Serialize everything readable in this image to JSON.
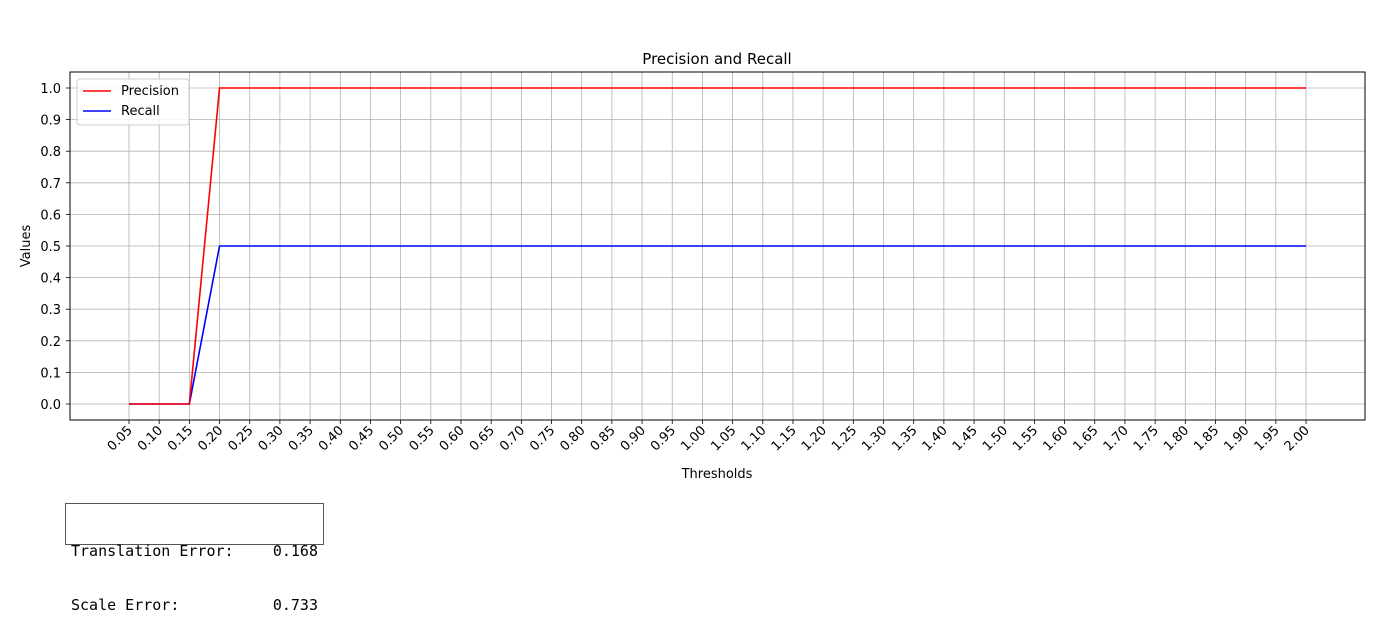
{
  "chart_data": {
    "type": "line",
    "title": "Precision and Recall",
    "xlabel": "Thresholds",
    "ylabel": "Values",
    "x": [
      "0.05",
      "0.10",
      "0.15",
      "0.20",
      "0.25",
      "0.30",
      "0.35",
      "0.40",
      "0.45",
      "0.50",
      "0.55",
      "0.60",
      "0.65",
      "0.70",
      "0.75",
      "0.80",
      "0.85",
      "0.90",
      "0.95",
      "1.00",
      "1.05",
      "1.10",
      "1.15",
      "1.20",
      "1.25",
      "1.30",
      "1.35",
      "1.40",
      "1.45",
      "1.50",
      "1.55",
      "1.60",
      "1.65",
      "1.70",
      "1.75",
      "1.80",
      "1.85",
      "1.90",
      "1.95",
      "2.00"
    ],
    "series": [
      {
        "name": "Precision",
        "color": "#ff0000",
        "values": [
          0,
          0,
          0,
          1,
          1,
          1,
          1,
          1,
          1,
          1,
          1,
          1,
          1,
          1,
          1,
          1,
          1,
          1,
          1,
          1,
          1,
          1,
          1,
          1,
          1,
          1,
          1,
          1,
          1,
          1,
          1,
          1,
          1,
          1,
          1,
          1,
          1,
          1,
          1,
          1
        ]
      },
      {
        "name": "Recall",
        "color": "#0000ff",
        "values": [
          0,
          0,
          0,
          0.5,
          0.5,
          0.5,
          0.5,
          0.5,
          0.5,
          0.5,
          0.5,
          0.5,
          0.5,
          0.5,
          0.5,
          0.5,
          0.5,
          0.5,
          0.5,
          0.5,
          0.5,
          0.5,
          0.5,
          0.5,
          0.5,
          0.5,
          0.5,
          0.5,
          0.5,
          0.5,
          0.5,
          0.5,
          0.5,
          0.5,
          0.5,
          0.5,
          0.5,
          0.5,
          0.5,
          0.5
        ]
      }
    ],
    "yticks": [
      "0.0",
      "0.1",
      "0.2",
      "0.3",
      "0.4",
      "0.5",
      "0.6",
      "0.7",
      "0.8",
      "0.9",
      "1.0"
    ],
    "ylim": [
      -0.05,
      1.05
    ],
    "grid": true,
    "legend_position": "upper-left"
  },
  "metrics": {
    "translation_label": "Translation Error:",
    "translation_value": "0.168",
    "scale_label": "Scale Error:",
    "scale_value": "0.733"
  }
}
